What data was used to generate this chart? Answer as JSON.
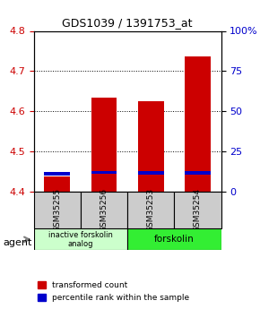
{
  "title": "GDS1039 / 1391753_at",
  "samples": [
    "GSM35255",
    "GSM35256",
    "GSM35253",
    "GSM35254"
  ],
  "red_values": [
    4.437,
    4.633,
    4.625,
    4.737
  ],
  "blue_values": [
    4.445,
    4.448,
    4.447,
    4.447
  ],
  "ylim_left": [
    4.4,
    4.8
  ],
  "ylim_right": [
    0,
    100
  ],
  "yticks_left": [
    4.4,
    4.5,
    4.6,
    4.7,
    4.8
  ],
  "yticks_right": [
    0,
    25,
    50,
    75,
    100
  ],
  "ytick_labels_right": [
    "0",
    "25",
    "50",
    "75",
    "100%"
  ],
  "red_color": "#cc0000",
  "blue_color": "#0000cc",
  "bar_base": 4.4,
  "blue_bar_height": 0.008,
  "group1_label": "inactive forskolin\nanalog",
  "group2_label": "forskolin",
  "group1_indices": [
    0,
    1
  ],
  "group2_indices": [
    2,
    3
  ],
  "group1_color": "#ccffcc",
  "group2_color": "#33ee33",
  "legend_red": "transformed count",
  "legend_blue": "percentile rank within the sample",
  "agent_label": "agent",
  "title_color": "#000000",
  "left_tick_color": "#cc0000",
  "right_tick_color": "#0000cc",
  "bar_width": 0.55,
  "label_area_bg": "#cccccc"
}
